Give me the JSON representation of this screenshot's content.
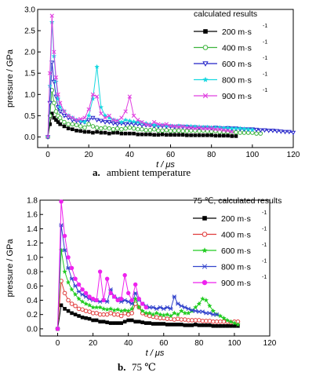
{
  "figure": {
    "panel_a_letter": "a.",
    "panel_a_caption": "ambient temperature",
    "panel_b_letter": "b.",
    "panel_b_caption": "75 ℃"
  },
  "chart_data": [
    {
      "type": "line",
      "panel": "a",
      "xlabel": "t / μs",
      "ylabel": "pressure / GPa",
      "xlim": [
        -5,
        120
      ],
      "ylim": [
        -0.25,
        3.0
      ],
      "xticks": [
        0,
        20,
        40,
        60,
        80,
        100,
        120
      ],
      "yticks": [
        0.0,
        0.5,
        1.0,
        1.5,
        2.0,
        2.5,
        3.0
      ],
      "legend_title": "calculated results",
      "legend_position": "top-right",
      "grid": false,
      "series": [
        {
          "name": "200 m·s-1",
          "color": "#000000",
          "marker": "square-filled",
          "x": [
            0,
            1,
            2,
            3,
            4,
            5,
            6,
            8,
            10,
            12,
            14,
            16,
            18,
            20,
            22,
            24,
            26,
            28,
            30,
            32,
            34,
            36,
            38,
            40,
            42,
            44,
            46,
            48,
            50,
            52,
            54,
            56,
            58,
            60,
            62,
            64,
            66,
            68,
            70,
            72,
            74,
            76,
            78,
            80,
            82,
            84,
            86,
            88,
            90,
            92
          ],
          "y": [
            0,
            0.3,
            0.55,
            0.45,
            0.4,
            0.35,
            0.3,
            0.25,
            0.2,
            0.18,
            0.15,
            0.14,
            0.12,
            0.12,
            0.1,
            0.12,
            0.1,
            0.1,
            0.08,
            0.1,
            0.1,
            0.08,
            0.08,
            0.08,
            0.08,
            0.06,
            0.06,
            0.06,
            0.06,
            0.05,
            0.05,
            0.06,
            0.05,
            0.05,
            0.05,
            0.05,
            0.05,
            0.04,
            0.04,
            0.04,
            0.04,
            0.04,
            0.04,
            0.04,
            0.03,
            0.03,
            0.03,
            0.03,
            0.02,
            0.02
          ]
        },
        {
          "name": "400 m·s-1",
          "color": "#3cb43c",
          "marker": "circle-open",
          "x": [
            0,
            1,
            2,
            3,
            4,
            5,
            6,
            8,
            10,
            12,
            14,
            16,
            18,
            20,
            22,
            24,
            26,
            28,
            30,
            32,
            34,
            36,
            38,
            40,
            42,
            44,
            46,
            48,
            50,
            52,
            54,
            56,
            58,
            60,
            62,
            64,
            66,
            68,
            70,
            72,
            74,
            76,
            78,
            80,
            82,
            84,
            86,
            88,
            90,
            92,
            94,
            96,
            98,
            100,
            102,
            104
          ],
          "y": [
            0,
            0.5,
            1.1,
            0.8,
            0.6,
            0.5,
            0.45,
            0.35,
            0.3,
            0.3,
            0.28,
            0.25,
            0.22,
            0.3,
            0.25,
            0.22,
            0.2,
            0.22,
            0.2,
            0.18,
            0.2,
            0.18,
            0.2,
            0.22,
            0.2,
            0.18,
            0.18,
            0.16,
            0.16,
            0.18,
            0.15,
            0.15,
            0.16,
            0.14,
            0.15,
            0.15,
            0.14,
            0.14,
            0.15,
            0.15,
            0.14,
            0.15,
            0.14,
            0.13,
            0.14,
            0.12,
            0.12,
            0.12,
            0.12,
            0.11,
            0.1,
            0.1,
            0.1,
            0.1,
            0.08,
            0.08
          ]
        },
        {
          "name": "600 m·s-1",
          "color": "#2020c8",
          "marker": "triangle-down-open",
          "x": [
            0,
            1,
            2,
            3,
            4,
            5,
            6,
            8,
            10,
            12,
            14,
            16,
            18,
            20,
            22,
            24,
            26,
            28,
            30,
            32,
            34,
            36,
            38,
            40,
            42,
            44,
            46,
            48,
            50,
            52,
            54,
            56,
            58,
            60,
            62,
            64,
            66,
            68,
            70,
            72,
            74,
            76,
            78,
            80,
            82,
            84,
            86,
            88,
            90,
            92,
            94,
            96,
            98,
            100,
            102,
            104,
            106,
            108,
            110,
            112,
            114,
            116,
            118,
            120
          ],
          "y": [
            0,
            0.8,
            1.75,
            1.3,
            0.95,
            0.7,
            0.6,
            0.5,
            0.45,
            0.4,
            0.38,
            0.35,
            0.35,
            0.4,
            0.45,
            0.4,
            0.38,
            0.35,
            0.35,
            0.32,
            0.3,
            0.32,
            0.3,
            0.32,
            0.3,
            0.3,
            0.28,
            0.28,
            0.28,
            0.26,
            0.25,
            0.26,
            0.25,
            0.25,
            0.24,
            0.25,
            0.24,
            0.24,
            0.23,
            0.23,
            0.22,
            0.22,
            0.22,
            0.21,
            0.22,
            0.21,
            0.2,
            0.21,
            0.2,
            0.2,
            0.19,
            0.18,
            0.18,
            0.18,
            0.17,
            0.16,
            0.16,
            0.15,
            0.15,
            0.14,
            0.13,
            0.12,
            0.12,
            0.1
          ]
        },
        {
          "name": "800 m·s-1",
          "color": "#18d8e0",
          "marker": "star",
          "x": [
            0,
            1,
            2,
            3,
            4,
            5,
            6,
            8,
            10,
            12,
            14,
            16,
            18,
            20,
            22,
            24,
            26,
            28,
            30,
            32,
            34,
            36,
            38,
            40,
            42,
            44,
            46,
            48,
            50,
            52,
            54,
            56,
            58,
            60,
            62,
            64,
            66,
            68,
            70,
            72,
            74,
            76,
            78,
            80,
            82,
            84,
            86,
            88,
            90,
            92,
            94,
            96,
            98,
            100
          ],
          "y": [
            0,
            1.2,
            2.7,
            1.9,
            1.3,
            0.9,
            0.7,
            0.6,
            0.5,
            0.45,
            0.4,
            0.38,
            0.35,
            0.5,
            0.9,
            1.65,
            0.7,
            0.5,
            0.45,
            0.4,
            0.38,
            0.35,
            0.4,
            0.38,
            0.36,
            0.35,
            0.33,
            0.32,
            0.3,
            0.28,
            0.27,
            0.28,
            0.27,
            0.26,
            0.25,
            0.26,
            0.25,
            0.25,
            0.25,
            0.24,
            0.24,
            0.23,
            0.23,
            0.22,
            0.22,
            0.22,
            0.21,
            0.21,
            0.2,
            0.2,
            0.2,
            0.19,
            0.18,
            0.17
          ]
        },
        {
          "name": "900 m·s-1",
          "color": "#e040e0",
          "marker": "x",
          "x": [
            0,
            1,
            2,
            3,
            4,
            5,
            6,
            8,
            10,
            12,
            14,
            16,
            18,
            20,
            22,
            24,
            26,
            28,
            30,
            32,
            34,
            36,
            38,
            40,
            42,
            44,
            46,
            48,
            50,
            52,
            54,
            56,
            58,
            60,
            62,
            64,
            66,
            68,
            70,
            72,
            74,
            76,
            78,
            80,
            82,
            84,
            86,
            88,
            90
          ],
          "y": [
            0,
            1.5,
            2.85,
            2.0,
            1.4,
            1.0,
            0.8,
            0.6,
            0.5,
            0.45,
            0.4,
            0.42,
            0.45,
            0.65,
            1.0,
            0.95,
            0.55,
            0.45,
            0.5,
            0.4,
            0.38,
            0.45,
            0.6,
            0.95,
            0.5,
            0.4,
            0.35,
            0.3,
            0.28,
            0.35,
            0.3,
            0.28,
            0.3,
            0.26,
            0.25,
            0.24,
            0.25,
            0.22,
            0.22,
            0.2,
            0.22,
            0.2,
            0.2,
            0.2,
            0.18,
            0.18,
            0.16,
            0.15,
            0.12
          ]
        }
      ]
    },
    {
      "type": "line",
      "panel": "b",
      "xlabel": "t / μs",
      "ylabel": "pressure / GPa",
      "xlim": [
        -10,
        120
      ],
      "ylim": [
        -0.1,
        1.8
      ],
      "xticks": [
        0,
        20,
        40,
        60,
        80,
        100,
        120
      ],
      "yticks": [
        0.0,
        0.2,
        0.4,
        0.6,
        0.8,
        1.0,
        1.2,
        1.4,
        1.6,
        1.8
      ],
      "legend_title": "75 ℃, calculated results",
      "legend_position": "top-right",
      "grid": false,
      "series": [
        {
          "name": "200 m·s-1",
          "color": "#000000",
          "marker": "square-filled",
          "x": [
            0,
            2,
            4,
            6,
            8,
            10,
            12,
            14,
            16,
            18,
            20,
            22,
            24,
            26,
            28,
            30,
            32,
            34,
            36,
            38,
            40,
            42,
            44,
            46,
            48,
            50,
            52,
            54,
            56,
            58,
            60,
            62,
            64,
            66,
            68,
            70,
            72,
            74,
            76,
            78,
            80,
            82,
            84,
            86,
            88,
            90,
            92,
            94,
            96,
            98,
            100,
            102
          ],
          "y": [
            0,
            0.33,
            0.28,
            0.25,
            0.22,
            0.2,
            0.18,
            0.16,
            0.15,
            0.14,
            0.12,
            0.12,
            0.1,
            0.1,
            0.09,
            0.08,
            0.08,
            0.08,
            0.08,
            0.1,
            0.12,
            0.12,
            0.1,
            0.1,
            0.09,
            0.08,
            0.08,
            0.07,
            0.07,
            0.07,
            0.07,
            0.06,
            0.06,
            0.06,
            0.06,
            0.06,
            0.05,
            0.05,
            0.05,
            0.06,
            0.05,
            0.05,
            0.05,
            0.05,
            0.04,
            0.04,
            0.04,
            0.04,
            0.04,
            0.04,
            0.04,
            0.04
          ]
        },
        {
          "name": "400 m·s-1",
          "color": "#e03a3a",
          "marker": "circle-open",
          "x": [
            0,
            2,
            4,
            6,
            8,
            10,
            12,
            14,
            16,
            18,
            20,
            22,
            24,
            26,
            28,
            30,
            32,
            34,
            36,
            38,
            40,
            42,
            44,
            46,
            48,
            50,
            52,
            54,
            56,
            58,
            60,
            62,
            64,
            66,
            68,
            70,
            72,
            74,
            76,
            78,
            80,
            82,
            84,
            86,
            88,
            90,
            92,
            94,
            96,
            98,
            100,
            102
          ],
          "y": [
            0,
            0.67,
            0.5,
            0.4,
            0.35,
            0.32,
            0.28,
            0.27,
            0.25,
            0.24,
            0.22,
            0.22,
            0.2,
            0.2,
            0.2,
            0.22,
            0.2,
            0.2,
            0.18,
            0.22,
            0.2,
            0.22,
            0.35,
            0.3,
            0.22,
            0.2,
            0.18,
            0.17,
            0.16,
            0.15,
            0.15,
            0.14,
            0.14,
            0.13,
            0.14,
            0.13,
            0.13,
            0.12,
            0.12,
            0.12,
            0.12,
            0.11,
            0.11,
            0.11,
            0.1,
            0.1,
            0.1,
            0.1,
            0.1,
            0.09,
            0.1,
            0.1
          ]
        },
        {
          "name": "600 m·s-1",
          "color": "#22cc22",
          "marker": "star",
          "x": [
            0,
            2,
            4,
            6,
            8,
            10,
            12,
            14,
            16,
            18,
            20,
            22,
            24,
            26,
            28,
            30,
            32,
            34,
            36,
            38,
            40,
            42,
            44,
            46,
            48,
            50,
            52,
            54,
            56,
            58,
            60,
            62,
            64,
            66,
            68,
            70,
            72,
            74,
            76,
            78,
            80,
            82,
            84,
            86,
            88,
            90,
            92,
            94,
            96,
            98,
            100,
            102
          ],
          "y": [
            0,
            1.1,
            0.8,
            0.65,
            0.55,
            0.48,
            0.42,
            0.38,
            0.35,
            0.33,
            0.3,
            0.3,
            0.3,
            0.28,
            0.27,
            0.28,
            0.26,
            0.27,
            0.25,
            0.26,
            0.25,
            0.28,
            0.42,
            0.3,
            0.25,
            0.22,
            0.22,
            0.2,
            0.22,
            0.2,
            0.19,
            0.2,
            0.18,
            0.22,
            0.2,
            0.25,
            0.22,
            0.22,
            0.25,
            0.3,
            0.35,
            0.42,
            0.4,
            0.32,
            0.25,
            0.2,
            0.18,
            0.15,
            0.12,
            0.1,
            0.08,
            0.06
          ]
        },
        {
          "name": "800 m·s-1",
          "color": "#3344cc",
          "marker": "asterisk",
          "x": [
            0,
            2,
            4,
            6,
            8,
            10,
            12,
            14,
            16,
            18,
            20,
            22,
            24,
            26,
            28,
            30,
            32,
            34,
            36,
            38,
            40,
            42,
            44,
            46,
            48,
            50,
            52,
            54,
            56,
            58,
            60,
            62,
            64,
            66,
            68,
            70,
            72,
            74,
            76,
            78,
            80,
            82,
            84,
            86,
            88,
            90
          ],
          "y": [
            0,
            1.45,
            1.1,
            0.85,
            0.7,
            0.6,
            0.52,
            0.48,
            0.45,
            0.42,
            0.4,
            0.4,
            0.38,
            0.4,
            0.38,
            0.55,
            0.45,
            0.42,
            0.38,
            0.4,
            0.38,
            0.35,
            0.5,
            0.4,
            0.35,
            0.32,
            0.3,
            0.3,
            0.28,
            0.3,
            0.28,
            0.3,
            0.28,
            0.45,
            0.35,
            0.32,
            0.3,
            0.28,
            0.26,
            0.25,
            0.24,
            0.24,
            0.22,
            0.22,
            0.2,
            0.2
          ]
        },
        {
          "name": "900 m·s-1",
          "color": "#ee22ee",
          "marker": "circle-filled",
          "x": [
            0,
            2,
            4,
            6,
            8,
            10,
            12,
            14,
            16,
            18,
            20,
            22,
            24,
            26,
            28,
            30,
            32,
            34,
            36,
            38,
            40,
            42,
            44,
            46,
            48,
            50
          ],
          "y": [
            0,
            1.78,
            1.3,
            1.0,
            0.85,
            0.7,
            0.62,
            0.55,
            0.5,
            0.45,
            0.42,
            0.4,
            0.8,
            0.4,
            0.7,
            0.5,
            0.45,
            0.4,
            0.42,
            0.75,
            0.5,
            0.4,
            0.62,
            0.42,
            0.35,
            0.3
          ]
        }
      ]
    }
  ]
}
